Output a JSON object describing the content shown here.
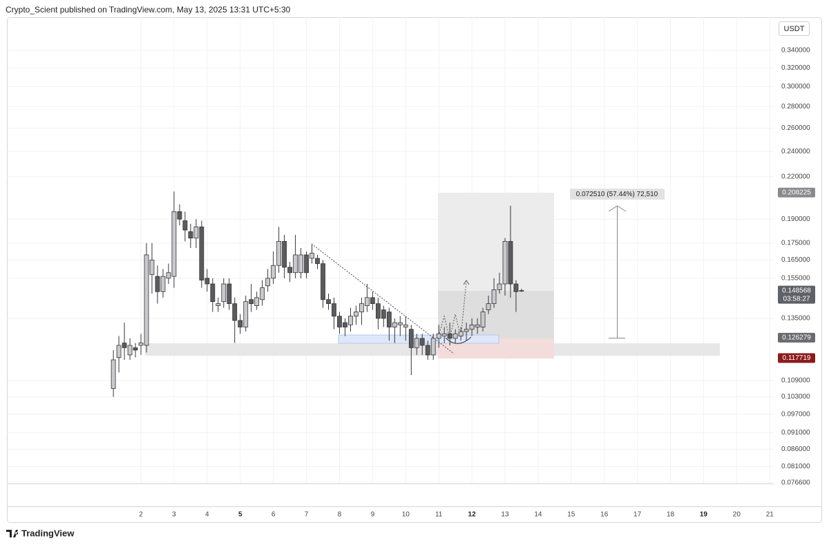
{
  "header": "Crypto_Scient published on TradingView.com, May 13, 2025 13:31 UTC+5:30",
  "footer": "TradingView",
  "chart_data": {
    "type": "candlestick",
    "currency": "USDT",
    "log_scale": true,
    "grid": true,
    "up_color": "#c9c9ce",
    "down_color": "#5b5b60",
    "edge_color": "#333333",
    "x": [
      1.167,
      1.333,
      1.5,
      1.667,
      1.833,
      2,
      2.167,
      2.333,
      2.5,
      2.667,
      2.833,
      3,
      3.167,
      3.333,
      3.5,
      3.667,
      3.833,
      4,
      4.167,
      4.333,
      4.5,
      4.667,
      4.833,
      5,
      5.167,
      5.333,
      5.5,
      5.667,
      5.833,
      6,
      6.167,
      6.333,
      6.5,
      6.667,
      6.833,
      7,
      7.167,
      7.333,
      7.5,
      7.667,
      7.833,
      8,
      8.167,
      8.333,
      8.5,
      8.667,
      8.833,
      9,
      9.167,
      9.333,
      9.5,
      9.667,
      9.833,
      10,
      10.167,
      10.333,
      10.5,
      10.667,
      10.833,
      11,
      11.167,
      11.333,
      11.5,
      11.667,
      11.833,
      12,
      12.167,
      12.333,
      12.5,
      12.667,
      12.833,
      13,
      13.167,
      13.333,
      13.5
    ],
    "open": [
      0.106,
      0.118,
      0.124,
      0.119,
      0.122,
      0.123,
      0.123,
      0.157,
      0.156,
      0.148,
      0.155,
      0.156,
      0.195,
      0.189,
      0.182,
      0.178,
      0.185,
      0.155,
      0.152,
      0.141,
      0.143,
      0.152,
      0.142,
      0.134,
      0.131,
      0.144,
      0.141,
      0.144,
      0.151,
      0.155,
      0.162,
      0.176,
      0.161,
      0.158,
      0.158,
      0.168,
      0.166,
      0.166,
      0.163,
      0.144,
      0.142,
      0.136,
      0.133,
      0.132,
      0.136,
      0.138,
      0.141,
      0.145,
      0.142,
      0.139,
      0.138,
      0.131,
      0.132,
      0.131,
      0.13,
      0.122,
      0.126,
      0.123,
      0.119,
      0.126,
      0.127,
      0.128,
      0.126,
      0.127,
      0.129,
      0.13,
      0.131,
      0.131,
      0.139,
      0.142,
      0.149,
      0.152,
      0.176,
      0.152,
      0.1486
    ],
    "close": [
      0.117,
      0.123,
      0.122,
      0.123,
      0.121,
      0.124,
      0.168,
      0.165,
      0.148,
      0.156,
      0.158,
      0.195,
      0.19,
      0.183,
      0.178,
      0.185,
      0.154,
      0.152,
      0.143,
      0.142,
      0.152,
      0.142,
      0.134,
      0.131,
      0.143,
      0.142,
      0.145,
      0.15,
      0.155,
      0.162,
      0.176,
      0.161,
      0.158,
      0.168,
      0.168,
      0.158,
      0.169,
      0.163,
      0.144,
      0.142,
      0.136,
      0.131,
      0.131,
      0.136,
      0.138,
      0.142,
      0.145,
      0.142,
      0.135,
      0.135,
      0.131,
      0.133,
      0.133,
      0.132,
      0.122,
      0.126,
      0.123,
      0.119,
      0.126,
      0.128,
      0.128,
      0.126,
      0.128,
      0.129,
      0.13,
      0.132,
      0.132,
      0.138,
      0.142,
      0.149,
      0.152,
      0.176,
      0.152,
      0.148,
      0.1486
    ],
    "high": [
      0.121,
      0.127,
      0.133,
      0.126,
      0.124,
      0.128,
      0.175,
      0.175,
      0.162,
      0.16,
      0.163,
      0.209,
      0.2,
      0.195,
      0.187,
      0.19,
      0.189,
      0.16,
      0.155,
      0.145,
      0.155,
      0.155,
      0.145,
      0.137,
      0.146,
      0.152,
      0.148,
      0.154,
      0.16,
      0.17,
      0.185,
      0.18,
      0.164,
      0.18,
      0.172,
      0.17,
      0.174,
      0.168,
      0.165,
      0.147,
      0.145,
      0.138,
      0.135,
      0.14,
      0.141,
      0.145,
      0.152,
      0.148,
      0.145,
      0.141,
      0.14,
      0.135,
      0.136,
      0.136,
      0.132,
      0.128,
      0.128,
      0.125,
      0.128,
      0.132,
      0.131,
      0.133,
      0.13,
      0.131,
      0.133,
      0.135,
      0.135,
      0.14,
      0.146,
      0.155,
      0.158,
      0.178,
      0.199,
      0.154,
      0.1495
    ],
    "low": [
      0.103,
      0.112,
      0.117,
      0.117,
      0.118,
      0.119,
      0.12,
      0.147,
      0.142,
      0.145,
      0.152,
      0.15,
      0.186,
      0.176,
      0.172,
      0.172,
      0.15,
      0.148,
      0.138,
      0.138,
      0.14,
      0.139,
      0.124,
      0.128,
      0.129,
      0.138,
      0.139,
      0.141,
      0.148,
      0.152,
      0.158,
      0.155,
      0.153,
      0.155,
      0.155,
      0.155,
      0.163,
      0.16,
      0.14,
      0.139,
      0.13,
      0.128,
      0.127,
      0.129,
      0.132,
      0.132,
      0.138,
      0.139,
      0.13,
      0.131,
      0.125,
      0.124,
      0.127,
      0.125,
      0.111,
      0.119,
      0.119,
      0.117,
      0.117,
      0.122,
      0.124,
      0.123,
      0.124,
      0.125,
      0.125,
      0.127,
      0.128,
      0.129,
      0.137,
      0.14,
      0.147,
      0.146,
      0.145,
      0.138,
      0.1478
    ],
    "xlim": [
      -2.05,
      21.12
    ],
    "xticks": [
      2,
      3,
      4,
      5,
      6,
      7,
      8,
      9,
      10,
      11,
      12,
      13,
      14,
      15,
      16,
      17,
      18,
      19,
      20,
      21
    ],
    "ylim": [
      0.0764,
      0.381
    ],
    "yticks": [
      {
        "value": 0.34,
        "label": "0.340000"
      },
      {
        "value": 0.32,
        "label": "0.320000"
      },
      {
        "value": 0.3,
        "label": "0.300000"
      },
      {
        "value": 0.28,
        "label": "0.280000"
      },
      {
        "value": 0.26,
        "label": "0.260000"
      },
      {
        "value": 0.24,
        "label": "0.240000"
      },
      {
        "value": 0.22,
        "label": "0.220000"
      },
      {
        "value": 0.19,
        "label": "0.190000"
      },
      {
        "value": 0.175,
        "label": "0.175000"
      },
      {
        "value": 0.165,
        "label": "0.165000"
      },
      {
        "value": 0.155,
        "label": "0.155000"
      },
      {
        "value": 0.135,
        "label": "0.135000"
      },
      {
        "value": 0.109,
        "label": "0.109000"
      },
      {
        "value": 0.103,
        "label": "0.103000"
      },
      {
        "value": 0.097,
        "label": "0.097000"
      },
      {
        "value": 0.091,
        "label": "0.091000"
      },
      {
        "value": 0.086,
        "label": "0.086000"
      },
      {
        "value": 0.081,
        "label": "0.081000"
      },
      {
        "value": 0.0766,
        "label": "0.076600"
      }
    ],
    "price_labels": [
      {
        "value": 0.208225,
        "color": "#8a8a8e"
      },
      {
        "value": 0.148568,
        "color": "#5f6168",
        "countdown": "03:58:27"
      },
      {
        "value": 0.126279,
        "color": "#6a6b70"
      },
      {
        "value": 0.117719,
        "color": "#8c1c1c"
      }
    ],
    "measure": "0.072510 (57.44%) 72,510"
  }
}
